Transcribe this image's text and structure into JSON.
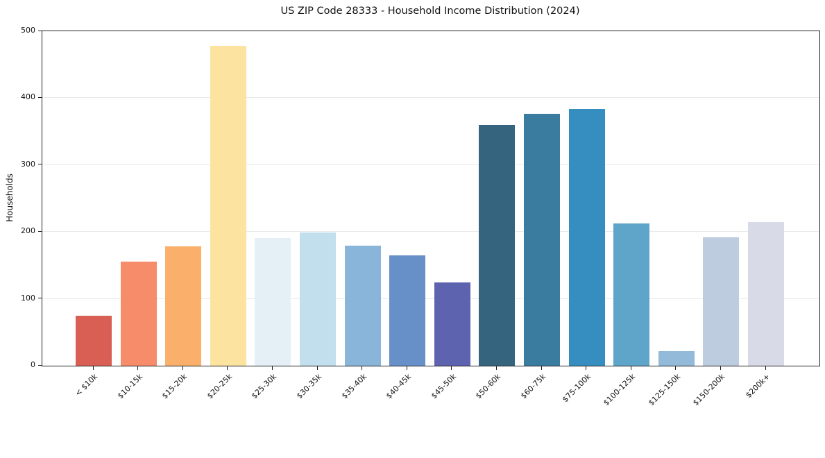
{
  "chart_data": {
    "type": "bar",
    "title": "US ZIP Code 28333 - Household Income Distribution (2024)",
    "ylabel": "Households",
    "xlabel": "",
    "ylim": [
      0,
      500
    ],
    "yticks": [
      0,
      100,
      200,
      300,
      400,
      500
    ],
    "grid": "horizontal-light",
    "legend": "none",
    "categories": [
      "< $10k",
      "$10-15k",
      "$15-20k",
      "$20-25k",
      "$25-30k",
      "$30-35k",
      "$35-40k",
      "$40-45k",
      "$45-50k",
      "$50-60k",
      "$60-75k",
      "$75-100k",
      "$100-125k",
      "$125-150k",
      "$150-200k",
      "$200k+"
    ],
    "values": [
      75,
      156,
      178,
      478,
      191,
      199,
      179,
      165,
      125,
      360,
      377,
      384,
      213,
      22,
      192,
      215
    ],
    "bar_colors": [
      "#d95f55",
      "#f68c69",
      "#fab06a",
      "#fce3a0",
      "#e5f0f6",
      "#c2dfee",
      "#89b5db",
      "#6890c8",
      "#5d63ae",
      "#35657e",
      "#3a7ca0",
      "#358dc0",
      "#5fa5c9",
      "#93bad9",
      "#bdccdf",
      "#d9dae8"
    ],
    "axis_color": "#1f1f1f",
    "gridline_color": "#e9e9e9",
    "background_color": "#ffffff"
  }
}
